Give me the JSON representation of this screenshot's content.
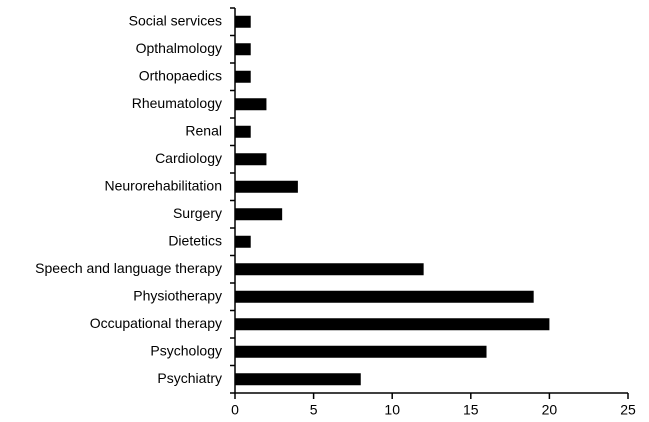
{
  "chart_data": {
    "type": "barh",
    "categories": [
      "Social services",
      "Opthalmology",
      "Orthopaedics",
      "Rheumatology",
      "Renal",
      "Cardiology",
      "Neurorehabilitation",
      "Surgery",
      "Dietetics",
      "Speech and language therapy",
      "Physiotherapy",
      "Occupational therapy",
      "Psychology",
      "Psychiatry"
    ],
    "values": [
      1,
      1,
      1,
      2,
      1,
      2,
      4,
      3,
      1,
      12,
      19,
      20,
      16,
      8
    ],
    "color": "#000000",
    "xlim": [
      0,
      25
    ],
    "xticks": [
      0,
      5,
      10,
      15,
      20,
      25
    ],
    "grid": false
  }
}
